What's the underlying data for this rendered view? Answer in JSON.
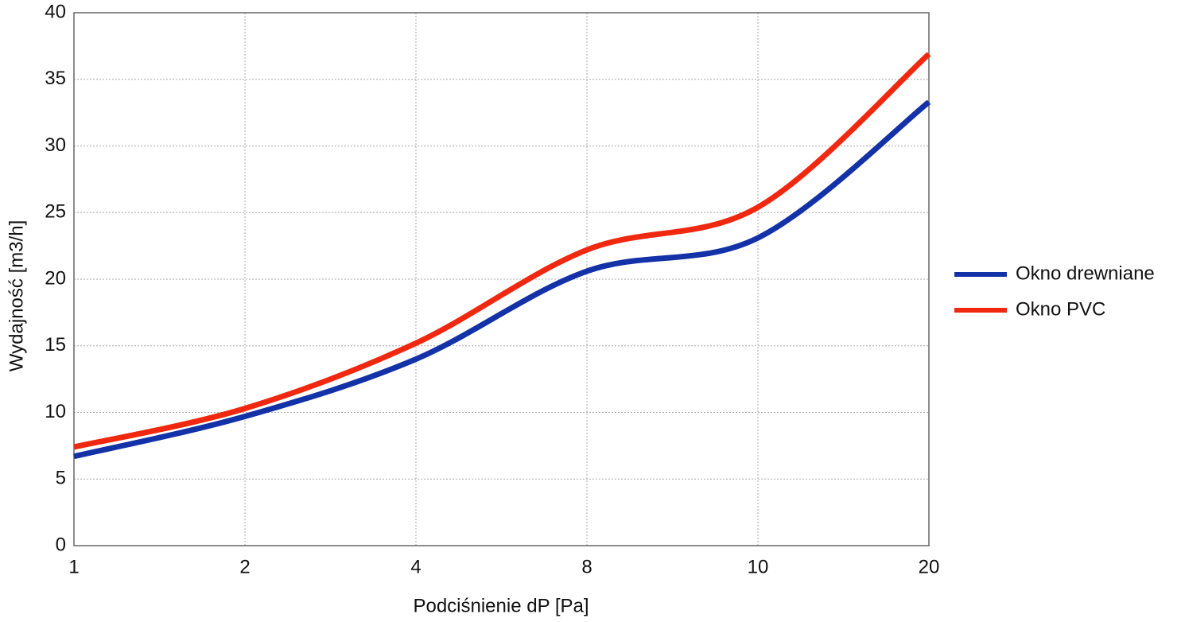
{
  "chart_data": {
    "type": "line",
    "smooth": true,
    "x_label": "Podciśnienie dP [Pa]",
    "y_label": "Wydajność [m3/h]",
    "categories": [
      "1",
      "2",
      "4",
      "8",
      "10",
      "20"
    ],
    "series": [
      {
        "name": "Okno drewniane",
        "color": "#1432a8",
        "values": [
          6.7,
          9.7,
          14,
          20.6,
          23.1,
          33.3
        ]
      },
      {
        "name": "Okno PVC",
        "color": "#f0280f",
        "values": [
          7.4,
          10.3,
          15.2,
          22.2,
          25.4,
          36.9
        ]
      }
    ],
    "ylim": [
      0,
      40
    ],
    "yticks": [
      0,
      5,
      10,
      15,
      20,
      25,
      30,
      35,
      40
    ],
    "grid": true,
    "legend": "right"
  }
}
